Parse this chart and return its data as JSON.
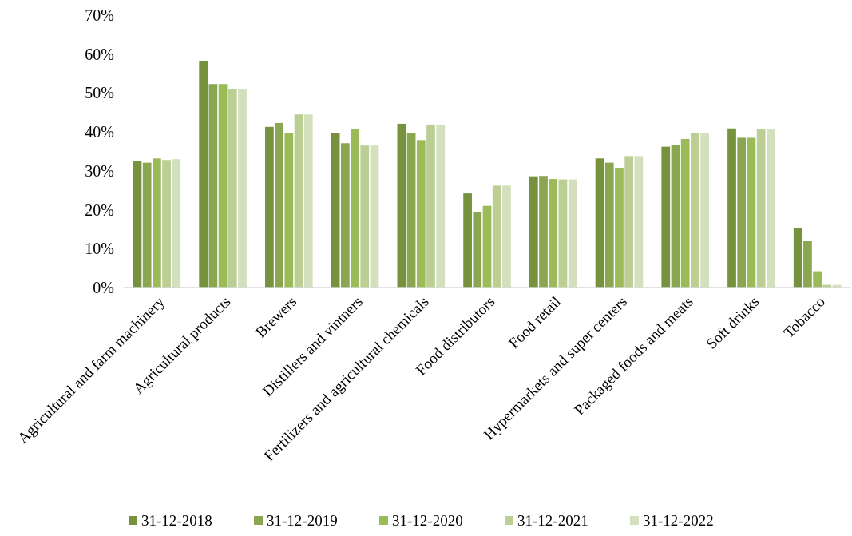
{
  "chart_data": {
    "type": "bar",
    "categories": [
      "Agricultural and farm machinery",
      "Agricultural products",
      "Brewers",
      "Distillers and vintners",
      "Fertilizers and agricultural chemicals",
      "Food distributors",
      "Food retail",
      "Hypermarkets and super centers",
      "Packaged foods and meats",
      "Soft drinks",
      "Tobacco"
    ],
    "series": [
      {
        "name": "31-12-2018",
        "color": "#77923c",
        "values": [
          32.5,
          58.3,
          41.3,
          39.8,
          42.1,
          24.2,
          28.6,
          33.2,
          36.2,
          40.9,
          15.2
        ]
      },
      {
        "name": "31-12-2019",
        "color": "#8aa650",
        "values": [
          32.1,
          52.3,
          42.3,
          37.1,
          39.7,
          19.4,
          28.7,
          32.1,
          36.7,
          38.5,
          11.9
        ]
      },
      {
        "name": "31-12-2020",
        "color": "#9bbb59",
        "values": [
          33.2,
          52.3,
          39.7,
          40.8,
          37.9,
          21.0,
          27.9,
          30.8,
          38.2,
          38.5,
          4.2
        ]
      },
      {
        "name": "31-12-2021",
        "color": "#bbcf95",
        "values": [
          32.8,
          50.9,
          44.5,
          36.5,
          41.9,
          26.2,
          27.8,
          33.8,
          39.7,
          40.8,
          0.7
        ]
      },
      {
        "name": "31-12-2022",
        "color": "#d3dfbd",
        "values": [
          33.0,
          50.9,
          44.5,
          36.5,
          41.9,
          26.2,
          27.8,
          33.8,
          39.7,
          40.8,
          0.7
        ]
      }
    ],
    "ylim": [
      0,
      70
    ],
    "yticks": [
      {
        "value": 0,
        "label": "0%"
      },
      {
        "value": 10,
        "label": "10%"
      },
      {
        "value": 20,
        "label": "20%"
      },
      {
        "value": 30,
        "label": "30%"
      },
      {
        "value": 40,
        "label": "40%"
      },
      {
        "value": 50,
        "label": "50%"
      },
      {
        "value": 60,
        "label": "60%"
      },
      {
        "value": 70,
        "label": "70%"
      }
    ],
    "grid": false,
    "legend": "bottom"
  }
}
